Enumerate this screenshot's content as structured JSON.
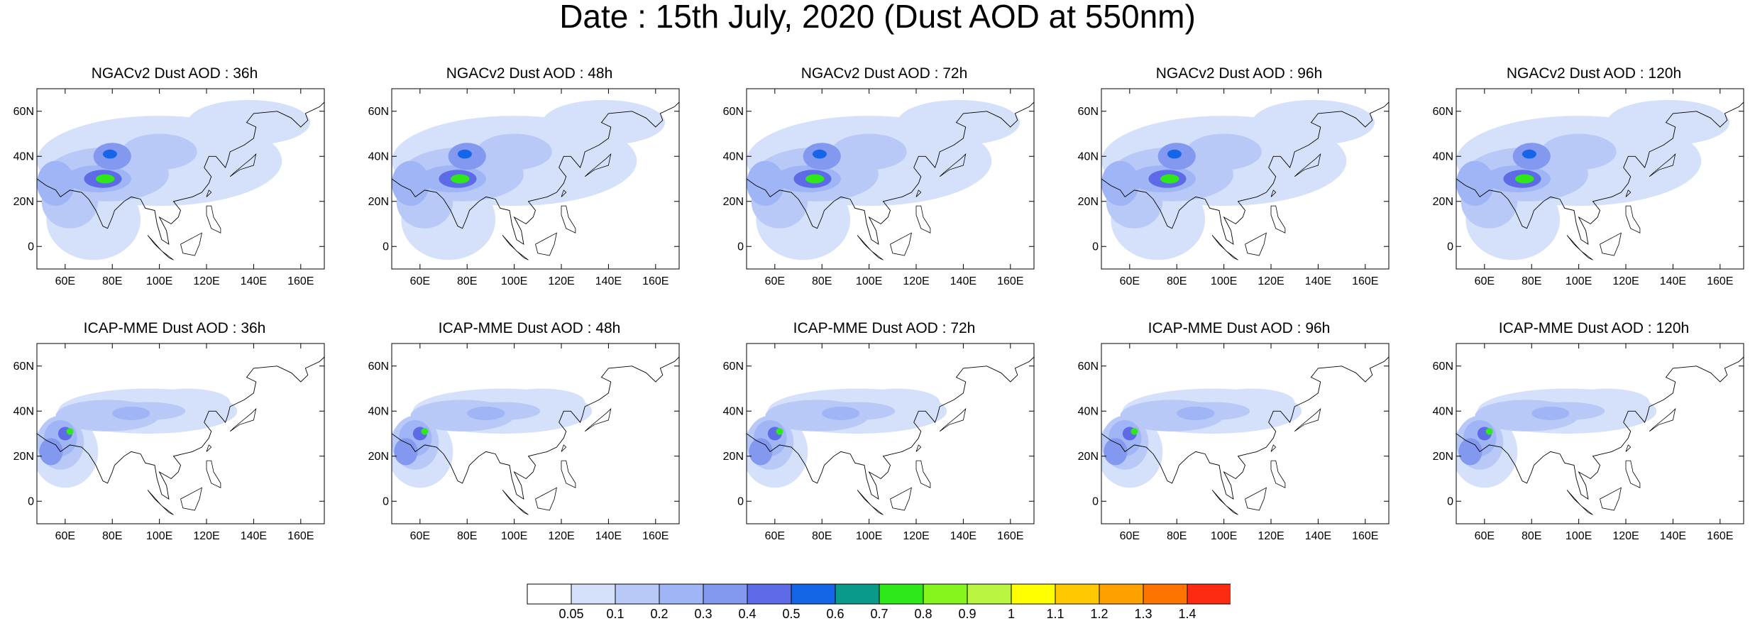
{
  "title": "Date : 15th July, 2020 (Dust AOD at 550nm)",
  "map_axes": {
    "lon_range": [
      48,
      170
    ],
    "lat_range": [
      -10,
      70
    ],
    "lon_ticks": [
      "60E",
      "80E",
      "100E",
      "120E",
      "140E",
      "160E"
    ],
    "lat_ticks": [
      "0",
      "20N",
      "40N",
      "60N"
    ]
  },
  "panels": [
    {
      "title": "NGACv2 Dust AOD : 36h",
      "model": "NGACv2",
      "lead": 36
    },
    {
      "title": "NGACv2 Dust AOD : 48h",
      "model": "NGACv2",
      "lead": 48
    },
    {
      "title": "NGACv2 Dust AOD : 72h",
      "model": "NGACv2",
      "lead": 72
    },
    {
      "title": "NGACv2 Dust AOD : 96h",
      "model": "NGACv2",
      "lead": 96
    },
    {
      "title": "NGACv2 Dust AOD : 120h",
      "model": "NGACv2",
      "lead": 120
    },
    {
      "title": "ICAP-MME Dust AOD : 36h",
      "model": "ICAP-MME",
      "lead": 36
    },
    {
      "title": "ICAP-MME Dust AOD : 48h",
      "model": "ICAP-MME",
      "lead": 48
    },
    {
      "title": "ICAP-MME Dust AOD : 72h",
      "model": "ICAP-MME",
      "lead": 72
    },
    {
      "title": "ICAP-MME Dust AOD : 96h",
      "model": "ICAP-MME",
      "lead": 96
    },
    {
      "title": "ICAP-MME Dust AOD : 120h",
      "model": "ICAP-MME",
      "lead": 120
    }
  ],
  "colorbar": {
    "labels": [
      "0.05",
      "0.1",
      "0.2",
      "0.3",
      "0.4",
      "0.5",
      "0.6",
      "0.7",
      "0.8",
      "0.9",
      "1",
      "1.1",
      "1.2",
      "1.3",
      "1.4"
    ],
    "colors": [
      "#ffffff",
      "#d5e0fb",
      "#b8c9f8",
      "#a0b5f5",
      "#8399f0",
      "#5e6be6",
      "#1565e8",
      "#0a9a8a",
      "#2ee81a",
      "#86f51e",
      "#b9f541",
      "#ffff00",
      "#ffc800",
      "#ffa200",
      "#ff7300",
      "#ff2a12"
    ]
  },
  "dust_palette": [
    "#d5e0fb",
    "#b8c9f8",
    "#a0b5f5",
    "#8399f0",
    "#5e6be6",
    "#1565e8",
    "#2ee81a"
  ]
}
